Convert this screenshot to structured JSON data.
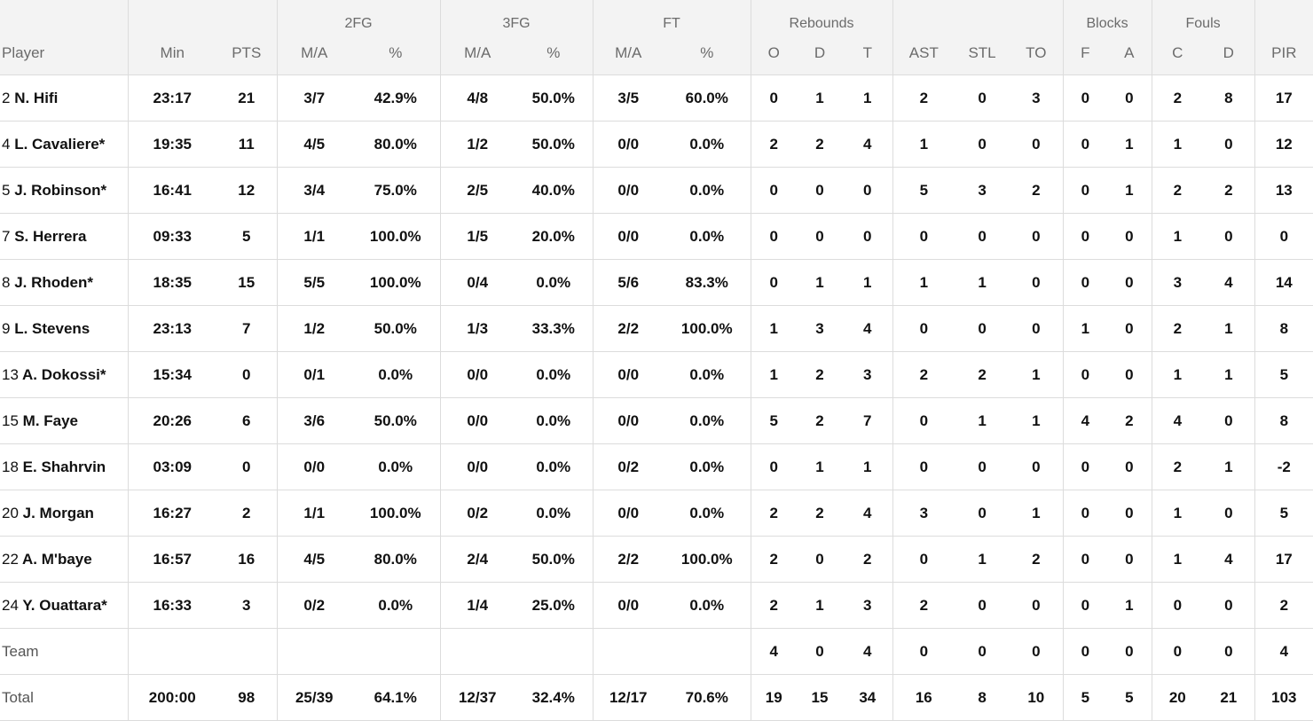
{
  "header": {
    "groups": {
      "twofg": "2FG",
      "threefg": "3FG",
      "ft": "FT",
      "rebounds": "Rebounds",
      "blocks": "Blocks",
      "fouls": "Fouls"
    },
    "columns": [
      "Player",
      "Min",
      "PTS",
      "M/A",
      "%",
      "M/A",
      "%",
      "M/A",
      "%",
      "O",
      "D",
      "T",
      "AST",
      "STL",
      "TO",
      "F",
      "A",
      "C",
      "D",
      "PIR"
    ]
  },
  "players": [
    {
      "num": "2",
      "name": "N. Hifi",
      "stats": [
        "23:17",
        "21",
        "3/7",
        "42.9%",
        "4/8",
        "50.0%",
        "3/5",
        "60.0%",
        "0",
        "1",
        "1",
        "2",
        "0",
        "3",
        "0",
        "0",
        "2",
        "8",
        "17"
      ]
    },
    {
      "num": "4",
      "name": "L. Cavaliere*",
      "stats": [
        "19:35",
        "11",
        "4/5",
        "80.0%",
        "1/2",
        "50.0%",
        "0/0",
        "0.0%",
        "2",
        "2",
        "4",
        "1",
        "0",
        "0",
        "0",
        "1",
        "1",
        "0",
        "12"
      ]
    },
    {
      "num": "5",
      "name": "J. Robinson*",
      "stats": [
        "16:41",
        "12",
        "3/4",
        "75.0%",
        "2/5",
        "40.0%",
        "0/0",
        "0.0%",
        "0",
        "0",
        "0",
        "5",
        "3",
        "2",
        "0",
        "1",
        "2",
        "2",
        "13"
      ]
    },
    {
      "num": "7",
      "name": "S. Herrera",
      "stats": [
        "09:33",
        "5",
        "1/1",
        "100.0%",
        "1/5",
        "20.0%",
        "0/0",
        "0.0%",
        "0",
        "0",
        "0",
        "0",
        "0",
        "0",
        "0",
        "0",
        "1",
        "0",
        "0"
      ]
    },
    {
      "num": "8",
      "name": "J. Rhoden*",
      "stats": [
        "18:35",
        "15",
        "5/5",
        "100.0%",
        "0/4",
        "0.0%",
        "5/6",
        "83.3%",
        "0",
        "1",
        "1",
        "1",
        "1",
        "0",
        "0",
        "0",
        "3",
        "4",
        "14"
      ]
    },
    {
      "num": "9",
      "name": "L. Stevens",
      "stats": [
        "23:13",
        "7",
        "1/2",
        "50.0%",
        "1/3",
        "33.3%",
        "2/2",
        "100.0%",
        "1",
        "3",
        "4",
        "0",
        "0",
        "0",
        "1",
        "0",
        "2",
        "1",
        "8"
      ]
    },
    {
      "num": "13",
      "name": "A. Dokossi*",
      "stats": [
        "15:34",
        "0",
        "0/1",
        "0.0%",
        "0/0",
        "0.0%",
        "0/0",
        "0.0%",
        "1",
        "2",
        "3",
        "2",
        "2",
        "1",
        "0",
        "0",
        "1",
        "1",
        "5"
      ]
    },
    {
      "num": "15",
      "name": "M. Faye",
      "stats": [
        "20:26",
        "6",
        "3/6",
        "50.0%",
        "0/0",
        "0.0%",
        "0/0",
        "0.0%",
        "5",
        "2",
        "7",
        "0",
        "1",
        "1",
        "4",
        "2",
        "4",
        "0",
        "8"
      ]
    },
    {
      "num": "18",
      "name": "E. Shahrvin",
      "stats": [
        "03:09",
        "0",
        "0/0",
        "0.0%",
        "0/0",
        "0.0%",
        "0/2",
        "0.0%",
        "0",
        "1",
        "1",
        "0",
        "0",
        "0",
        "0",
        "0",
        "2",
        "1",
        "-2"
      ]
    },
    {
      "num": "20",
      "name": "J. Morgan",
      "stats": [
        "16:27",
        "2",
        "1/1",
        "100.0%",
        "0/2",
        "0.0%",
        "0/0",
        "0.0%",
        "2",
        "2",
        "4",
        "3",
        "0",
        "1",
        "0",
        "0",
        "1",
        "0",
        "5"
      ]
    },
    {
      "num": "22",
      "name": "A. M'baye",
      "stats": [
        "16:57",
        "16",
        "4/5",
        "80.0%",
        "2/4",
        "50.0%",
        "2/2",
        "100.0%",
        "2",
        "0",
        "2",
        "0",
        "1",
        "2",
        "0",
        "0",
        "1",
        "4",
        "17"
      ]
    },
    {
      "num": "24",
      "name": "Y. Ouattara*",
      "stats": [
        "16:33",
        "3",
        "0/2",
        "0.0%",
        "1/4",
        "25.0%",
        "0/0",
        "0.0%",
        "2",
        "1",
        "3",
        "2",
        "0",
        "0",
        "0",
        "1",
        "0",
        "0",
        "2"
      ]
    }
  ],
  "team": {
    "label": "Team",
    "stats": [
      "",
      "",
      "",
      "",
      "",
      "",
      "",
      "",
      "4",
      "0",
      "4",
      "0",
      "0",
      "0",
      "0",
      "0",
      "0",
      "0",
      "4"
    ]
  },
  "total": {
    "label": "Total",
    "stats": [
      "200:00",
      "98",
      "25/39",
      "64.1%",
      "12/37",
      "32.4%",
      "12/17",
      "70.6%",
      "19",
      "15",
      "34",
      "16",
      "8",
      "10",
      "5",
      "5",
      "20",
      "21",
      "103"
    ]
  }
}
